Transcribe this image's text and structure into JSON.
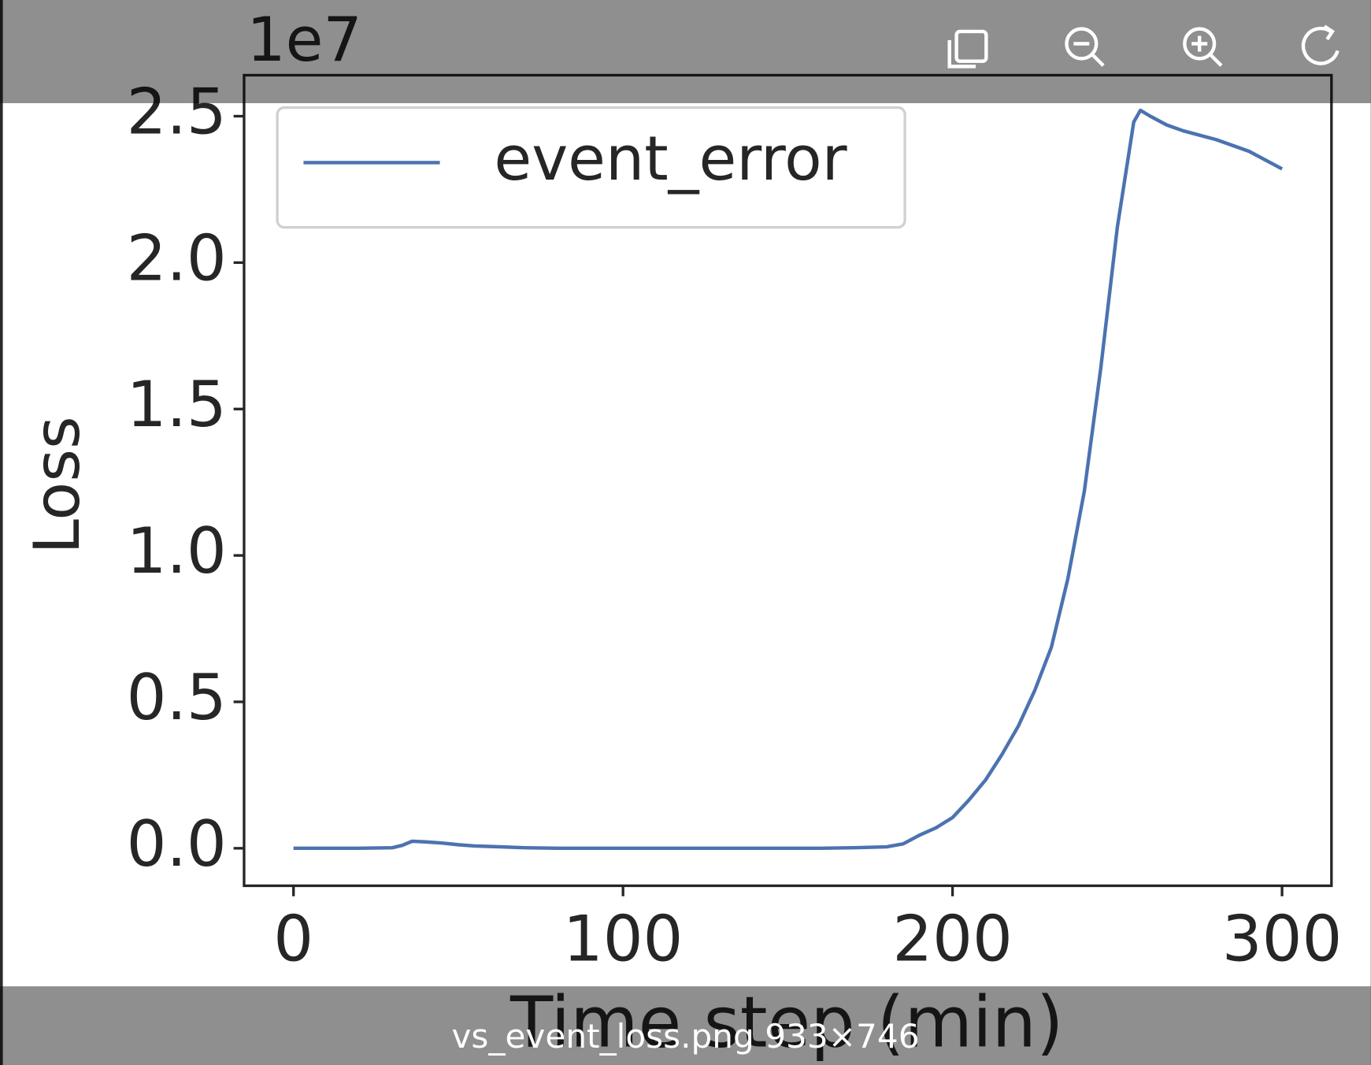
{
  "chart_data": {
    "type": "line",
    "xlabel": "Time step (min)",
    "ylabel": "Loss",
    "y_offset_label": "1e7",
    "x": [
      0,
      10,
      20,
      30,
      33,
      36,
      40,
      45,
      50,
      55,
      60,
      70,
      80,
      100,
      120,
      140,
      160,
      170,
      180,
      185,
      190,
      195,
      200,
      205,
      210,
      215,
      220,
      225,
      230,
      235,
      240,
      245,
      250,
      255,
      257,
      260,
      265,
      270,
      280,
      290,
      300
    ],
    "series": [
      {
        "name": "event_error",
        "color": "#4c72b0",
        "values": [
          0,
          0,
          0,
          20000,
          100000,
          240000,
          220000,
          180000,
          120000,
          80000,
          60000,
          20000,
          0,
          0,
          0,
          0,
          0,
          20000,
          50000,
          150000,
          450000,
          700000,
          1050000,
          1650000,
          2330000,
          3200000,
          4180000,
          5400000,
          6870000,
          9200000,
          12200000,
          16400000,
          21200000,
          24800000,
          25200000,
          25000000,
          24700000,
          24500000,
          24200000,
          23800000,
          23200000
        ]
      }
    ],
    "xlim": [
      -15,
      315
    ],
    "xticks": [
      0,
      100,
      200,
      300
    ],
    "ylim": [
      -1280000,
      26400000
    ],
    "yticks": [
      {
        "value": 0,
        "label": "0.0"
      },
      {
        "value": 5000000,
        "label": "0.5"
      },
      {
        "value": 10000000,
        "label": "1.0"
      },
      {
        "value": 15000000,
        "label": "1.5"
      },
      {
        "value": 20000000,
        "label": "2.0"
      },
      {
        "value": 25000000,
        "label": "2.5"
      }
    ],
    "legend": "upper left"
  },
  "viewer": {
    "caption": "vs_event_loss.png 933×746"
  }
}
